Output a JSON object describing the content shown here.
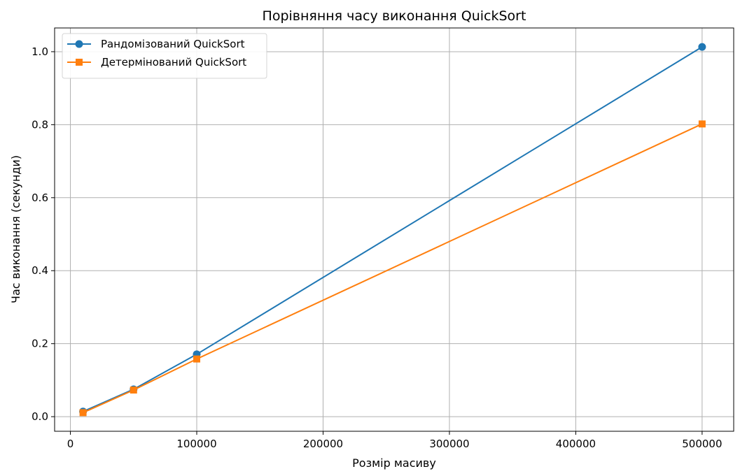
{
  "chart_data": {
    "type": "line",
    "title": "Порівняння часу виконання QuickSort",
    "xlabel": "Розмір масиву",
    "ylabel": "Час виконання (секунди)",
    "x": [
      10000,
      50000,
      100000,
      500000
    ],
    "xlim": [
      -12500,
      525000
    ],
    "ylim": [
      -0.04,
      1.065
    ],
    "xticks": [
      0,
      100000,
      200000,
      300000,
      400000,
      500000
    ],
    "yticks": [
      0.0,
      0.2,
      0.4,
      0.6,
      0.8,
      1.0
    ],
    "xtick_labels": [
      "0",
      "100000",
      "200000",
      "300000",
      "400000",
      "500000"
    ],
    "ytick_labels": [
      "0.0",
      "0.2",
      "0.4",
      "0.6",
      "0.8",
      "1.0"
    ],
    "grid": true,
    "legend_position": "upper left",
    "series": [
      {
        "name": "Рандомізований QuickSort",
        "values": [
          0.014,
          0.075,
          0.171,
          1.013
        ],
        "color": "#1f77b4",
        "marker": "circle"
      },
      {
        "name": "Детермінований QuickSort",
        "values": [
          0.011,
          0.073,
          0.158,
          0.802
        ],
        "color": "#ff7f0e",
        "marker": "square"
      }
    ]
  }
}
